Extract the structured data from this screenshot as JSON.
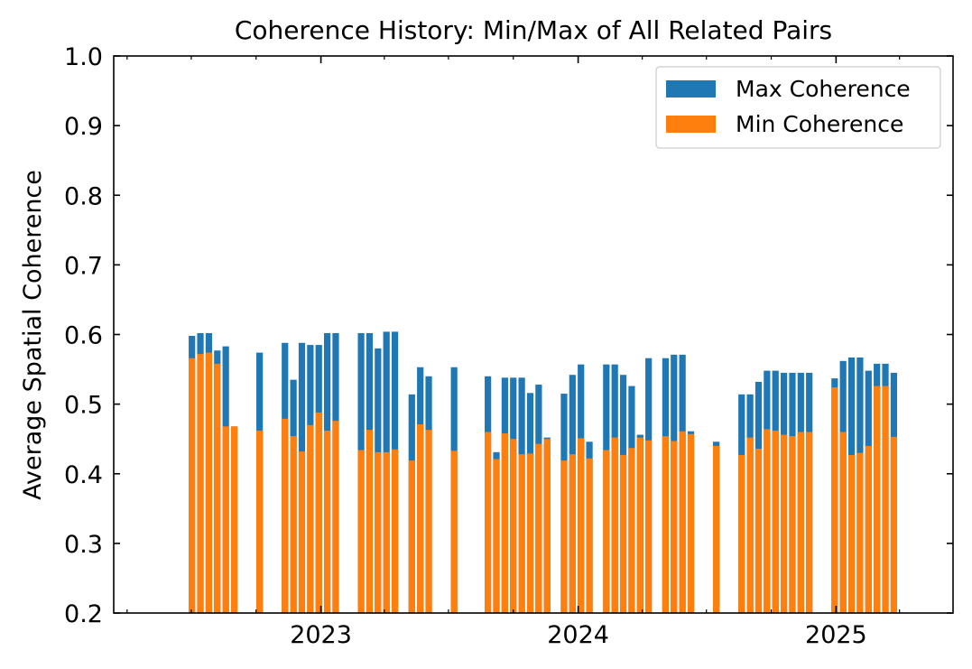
{
  "chart_data": {
    "type": "bar",
    "title": "Coherence History: Min/Max of All Related Pairs",
    "xlabel": "",
    "ylabel": "Average Spatial Coherence",
    "ylim": [
      0.2,
      1.0
    ],
    "xlim": [
      "2022-03-13",
      "2025-06-16"
    ],
    "y_ticks": [
      "0.2",
      "0.3",
      "0.4",
      "0.5",
      "0.6",
      "0.7",
      "0.8",
      "0.9",
      "1.0"
    ],
    "x_ticks": [
      {
        "date": "2023-01-01",
        "label": "2023"
      },
      {
        "date": "2024-01-01",
        "label": "2024"
      },
      {
        "date": "2025-01-01",
        "label": "2025"
      }
    ],
    "grid": false,
    "legend_position": "top-right",
    "series": [
      {
        "name": "Max Coherence",
        "color": "#1f77b4"
      },
      {
        "name": "Min Coherence",
        "color": "#ff7f0e"
      }
    ],
    "x": [
      "2022-07-02",
      "2022-07-14",
      "2022-07-26",
      "2022-08-07",
      "2022-08-19",
      "2022-08-31",
      "2022-10-06",
      "2022-11-11",
      "2022-11-23",
      "2022-12-05",
      "2022-12-17",
      "2022-12-29",
      "2023-01-10",
      "2023-01-22",
      "2023-02-27",
      "2023-03-11",
      "2023-03-23",
      "2023-04-04",
      "2023-04-16",
      "2023-05-10",
      "2023-05-22",
      "2023-06-03",
      "2023-07-09",
      "2023-08-26",
      "2023-09-07",
      "2023-09-19",
      "2023-10-01",
      "2023-10-13",
      "2023-10-25",
      "2023-11-06",
      "2023-11-18",
      "2023-12-12",
      "2023-12-24",
      "2024-01-05",
      "2024-01-17",
      "2024-02-10",
      "2024-02-22",
      "2024-03-05",
      "2024-03-17",
      "2024-03-29",
      "2024-04-10",
      "2024-05-04",
      "2024-05-16",
      "2024-05-28",
      "2024-06-09",
      "2024-07-15",
      "2024-08-20",
      "2024-09-01",
      "2024-09-13",
      "2024-09-25",
      "2024-10-07",
      "2024-10-19",
      "2024-10-31",
      "2024-11-12",
      "2024-11-24",
      "2024-12-30",
      "2025-01-11",
      "2025-01-23",
      "2025-02-04",
      "2025-02-16",
      "2025-02-28",
      "2025-03-12",
      "2025-03-24"
    ],
    "max_values": [
      0.598,
      0.602,
      0.602,
      0.577,
      0.583,
      0.468,
      0.574,
      0.588,
      0.535,
      0.588,
      0.585,
      0.585,
      0.602,
      0.602,
      0.602,
      0.602,
      0.58,
      0.604,
      0.604,
      0.514,
      0.553,
      0.54,
      0.553,
      0.54,
      0.431,
      0.538,
      0.538,
      0.538,
      0.516,
      0.528,
      0.452,
      0.515,
      0.542,
      0.557,
      0.446,
      0.557,
      0.557,
      0.542,
      0.526,
      0.456,
      0.566,
      0.566,
      0.571,
      0.571,
      0.461,
      0.446,
      0.514,
      0.514,
      0.532,
      0.548,
      0.548,
      0.545,
      0.545,
      0.545,
      0.545,
      0.537,
      0.562,
      0.567,
      0.567,
      0.548,
      0.558,
      0.558,
      0.545
    ],
    "min_values": [
      0.566,
      0.572,
      0.574,
      0.558,
      0.468,
      0.468,
      0.462,
      0.479,
      0.454,
      0.432,
      0.47,
      0.488,
      0.462,
      0.476,
      0.434,
      0.463,
      0.431,
      0.431,
      0.435,
      0.419,
      0.471,
      0.463,
      0.433,
      0.46,
      0.421,
      0.458,
      0.45,
      0.428,
      0.429,
      0.443,
      0.45,
      0.419,
      0.428,
      0.451,
      0.422,
      0.434,
      0.452,
      0.427,
      0.437,
      0.452,
      0.448,
      0.454,
      0.447,
      0.461,
      0.457,
      0.44,
      0.427,
      0.452,
      0.436,
      0.464,
      0.462,
      0.456,
      0.454,
      0.46,
      0.46,
      0.524,
      0.46,
      0.427,
      0.43,
      0.44,
      0.526,
      0.526,
      0.453
    ]
  }
}
